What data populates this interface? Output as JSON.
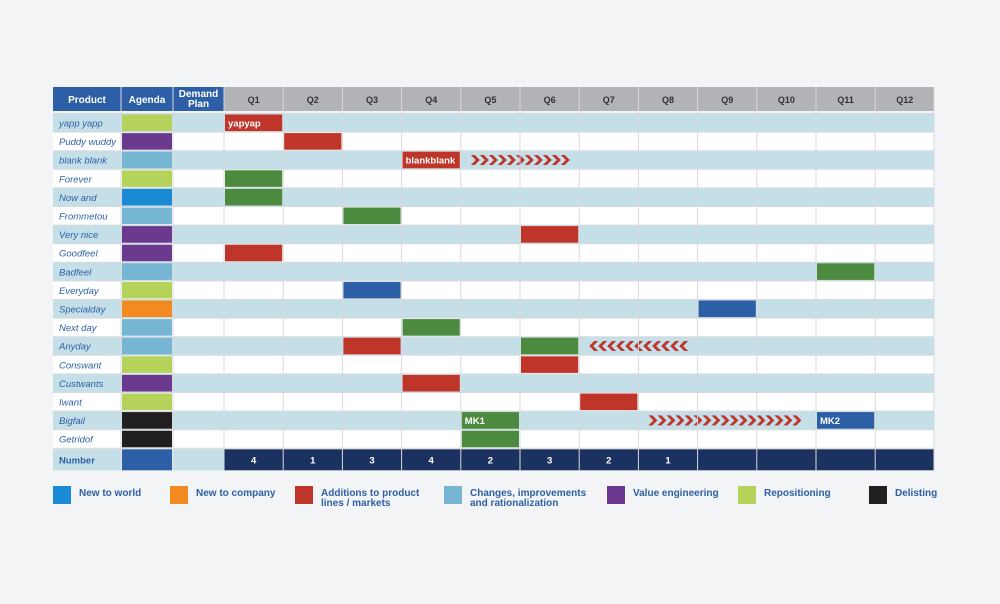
{
  "header": {
    "product": "Product",
    "agenda": "Agenda",
    "demand_plan": "Demand\nPlan",
    "quarters": [
      "Q1",
      "Q2",
      "Q3",
      "Q4",
      "Q5",
      "Q6",
      "Q7",
      "Q8",
      "Q9",
      "Q10",
      "Q11",
      "Q12"
    ]
  },
  "colors": {
    "header_blue": "#2d5fa6",
    "header_grey": "#b1b3b6",
    "row_light": "#c5dfe9",
    "row_white": "#ffffff",
    "number_row": "#1b3160",
    "text_blue": "#2d5fa6",
    "red": "#c0352a",
    "green": "#4b8a3f",
    "blue": "#2d5fa6"
  },
  "agenda_colors": {
    "new_world": "#1b8ad4",
    "new_company": "#f28a22",
    "additions": "#c0352a",
    "changes": "#76b6d3",
    "value_eng": "#6b3a8e",
    "repositioning": "#b5d25a",
    "delisting": "#221f20"
  },
  "chart_data": {
    "type": "table",
    "rows": [
      {
        "product": "yapp yapp",
        "agenda": "repositioning",
        "bars": [
          {
            "q": 1,
            "span": 1,
            "color": "red",
            "label": "yapyap"
          }
        ]
      },
      {
        "product": "Puddy wuddy",
        "agenda": "value_eng",
        "bars": [
          {
            "q": 2,
            "span": 1,
            "color": "red"
          }
        ]
      },
      {
        "product": "blank blank",
        "agenda": "changes",
        "bars": [
          {
            "q": 4,
            "span": 1,
            "color": "red",
            "label": "blankblank"
          }
        ],
        "arrow": {
          "from": 5,
          "to": 6,
          "dir": "right"
        }
      },
      {
        "product": "Forever",
        "agenda": "repositioning",
        "bars": [
          {
            "q": 1,
            "span": 1,
            "color": "green"
          }
        ]
      },
      {
        "product": "Now and",
        "agenda": "new_world",
        "bars": [
          {
            "q": 1,
            "span": 1,
            "color": "green"
          }
        ]
      },
      {
        "product": "Frommetou",
        "agenda": "changes",
        "bars": [
          {
            "q": 3,
            "span": 1,
            "color": "green"
          }
        ]
      },
      {
        "product": "Very nice",
        "agenda": "value_eng",
        "bars": [
          {
            "q": 6,
            "span": 1,
            "color": "red"
          }
        ]
      },
      {
        "product": "Goodfeel",
        "agenda": "value_eng",
        "bars": [
          {
            "q": 1,
            "span": 1,
            "color": "red"
          }
        ]
      },
      {
        "product": "Badfeel",
        "agenda": "changes",
        "bars": [
          {
            "q": 11,
            "span": 1,
            "color": "green"
          }
        ]
      },
      {
        "product": "Everyday",
        "agenda": "repositioning",
        "bars": [
          {
            "q": 3,
            "span": 1,
            "color": "blue"
          }
        ]
      },
      {
        "product": "Specialday",
        "agenda": "new_company",
        "bars": [
          {
            "q": 9,
            "span": 1,
            "color": "blue"
          }
        ]
      },
      {
        "product": "Next day",
        "agenda": "changes",
        "bars": [
          {
            "q": 4,
            "span": 1,
            "color": "green"
          }
        ]
      },
      {
        "product": "Anyday",
        "agenda": "changes",
        "bars": [
          {
            "q": 3,
            "span": 1,
            "color": "red"
          },
          {
            "q": 6,
            "span": 1,
            "color": "green"
          }
        ],
        "arrow": {
          "from": 7,
          "to": 8,
          "dir": "left"
        }
      },
      {
        "product": "Conswant",
        "agenda": "repositioning",
        "bars": [
          {
            "q": 6,
            "span": 1,
            "color": "red"
          }
        ]
      },
      {
        "product": "Custwants",
        "agenda": "value_eng",
        "bars": [
          {
            "q": 4,
            "span": 1,
            "color": "red"
          }
        ]
      },
      {
        "product": "Iwant",
        "agenda": "repositioning",
        "bars": [
          {
            "q": 7,
            "span": 1,
            "color": "red"
          }
        ]
      },
      {
        "product": "Bigfail",
        "agenda": "delisting",
        "bars": [
          {
            "q": 5,
            "span": 1,
            "color": "green",
            "label": "MK1"
          },
          {
            "q": 11,
            "span": 1,
            "color": "blue",
            "label": "MK2"
          }
        ],
        "arrow": {
          "from": 8,
          "to": 10,
          "dir": "right"
        }
      },
      {
        "product": "Getridof",
        "agenda": "delisting",
        "bars": [
          {
            "q": 5,
            "span": 1,
            "color": "green"
          }
        ]
      }
    ],
    "number_row": {
      "label": "Number",
      "agenda_color": "#2d5fa6",
      "values": [
        "4",
        "1",
        "3",
        "4",
        "2",
        "3",
        "2",
        "1",
        "",
        "",
        "",
        ""
      ]
    }
  },
  "legend": [
    {
      "key": "new_world",
      "label": "New to world"
    },
    {
      "key": "new_company",
      "label": "New to company"
    },
    {
      "key": "additions",
      "label": "Additions to product\nlines / markets"
    },
    {
      "key": "changes",
      "label": "Changes, improvements\nand rationalization"
    },
    {
      "key": "value_eng",
      "label": "Value engineering"
    },
    {
      "key": "repositioning",
      "label": "Repositioning"
    },
    {
      "key": "delisting",
      "label": "Delisting"
    }
  ]
}
